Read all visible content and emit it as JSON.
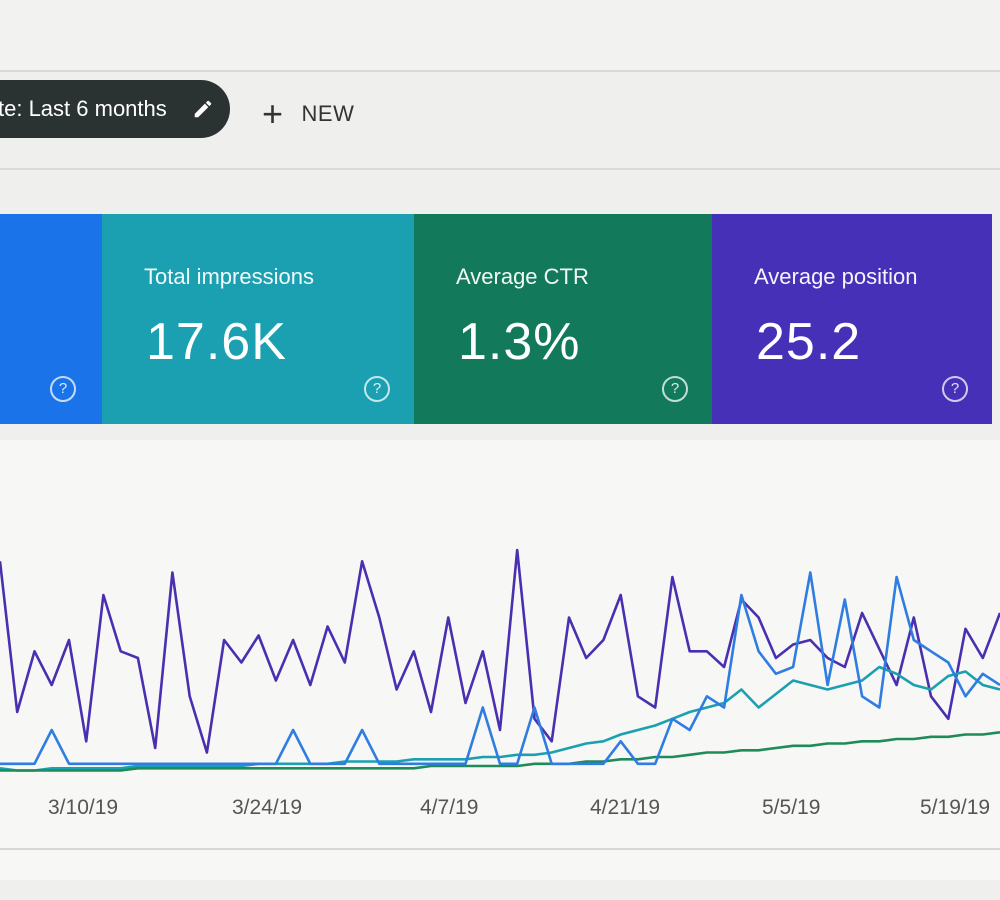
{
  "toolbar": {
    "date_chip_label": "te: Last 6 months",
    "new_label": "NEW"
  },
  "cards": [
    {
      "label": "",
      "value": "",
      "color": "#1a73e8"
    },
    {
      "label": "Total impressions",
      "value": "17.6K",
      "color": "#1aa0b1"
    },
    {
      "label": "Average CTR",
      "value": "1.3%",
      "color": "#127a5a"
    },
    {
      "label": "Average position",
      "value": "25.2",
      "color": "#4630b7"
    }
  ],
  "help_glyph": "?",
  "chart_data": {
    "type": "line",
    "x_tick_labels": [
      "3/10/19",
      "3/24/19",
      "4/7/19",
      "4/21/19",
      "5/5/19",
      "5/19/19"
    ],
    "y_range": [
      0,
      100
    ],
    "grid": false,
    "series": [
      {
        "color": "#4a2fb0",
        "values": [
          95,
          28,
          55,
          40,
          60,
          15,
          80,
          55,
          52,
          12,
          90,
          35,
          10,
          60,
          50,
          62,
          42,
          60,
          40,
          66,
          50,
          95,
          70,
          38,
          55,
          28,
          70,
          32,
          55,
          20,
          100,
          25,
          15,
          70,
          52,
          60,
          80,
          35,
          30,
          88,
          55,
          55,
          48,
          78,
          70,
          52,
          58,
          60,
          52,
          48,
          72,
          56,
          40,
          70,
          35,
          25,
          65,
          52,
          72
        ]
      },
      {
        "color": "#1aa0b1",
        "values": [
          3,
          2,
          2,
          3,
          3,
          3,
          3,
          3,
          4,
          4,
          4,
          4,
          4,
          4,
          4,
          5,
          5,
          5,
          5,
          5,
          6,
          6,
          6,
          6,
          7,
          7,
          7,
          7,
          8,
          8,
          9,
          9,
          10,
          12,
          14,
          15,
          18,
          20,
          22,
          25,
          28,
          30,
          32,
          38,
          30,
          36,
          42,
          40,
          38,
          40,
          42,
          48,
          45,
          40,
          38,
          44,
          46,
          40,
          38
        ]
      },
      {
        "color": "#1f8a5a",
        "values": [
          2,
          2,
          2,
          2,
          2,
          2,
          2,
          2,
          3,
          3,
          3,
          3,
          3,
          3,
          3,
          3,
          3,
          3,
          3,
          3,
          3,
          3,
          3,
          3,
          3,
          4,
          4,
          4,
          4,
          4,
          4,
          5,
          5,
          5,
          6,
          6,
          7,
          7,
          8,
          8,
          9,
          10,
          10,
          11,
          11,
          12,
          13,
          13,
          14,
          14,
          15,
          15,
          16,
          16,
          17,
          17,
          18,
          18,
          19
        ]
      },
      {
        "color": "#2f7de0",
        "values": [
          5,
          5,
          5,
          20,
          5,
          5,
          5,
          5,
          5,
          5,
          5,
          5,
          5,
          5,
          5,
          5,
          5,
          20,
          5,
          5,
          5,
          20,
          5,
          5,
          5,
          5,
          5,
          5,
          30,
          5,
          5,
          30,
          5,
          5,
          5,
          5,
          15,
          5,
          5,
          25,
          20,
          35,
          30,
          80,
          55,
          45,
          48,
          90,
          40,
          78,
          35,
          30,
          88,
          60,
          55,
          50,
          35,
          45,
          40
        ]
      }
    ]
  }
}
